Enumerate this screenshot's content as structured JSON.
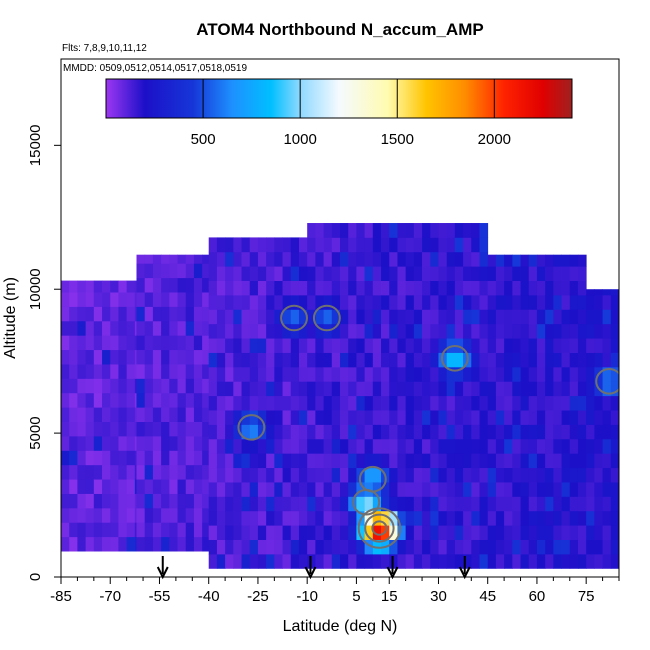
{
  "chart_data": {
    "type": "heatmap",
    "title": "ATOM4 Northbound N_accum_AMP",
    "subtitle_flights": "Flts: 7,8,9,10,11,12",
    "subtitle_dates": "MMDD: 0509,0512,0514,0517,0518,0519",
    "xlabel": "Latitude (deg N)",
    "ylabel": "Altitude (m)",
    "xlim": [
      -85,
      85
    ],
    "ylim": [
      0,
      18000
    ],
    "x_ticks": [
      -85,
      -70,
      -55,
      -40,
      -25,
      -10,
      5,
      15,
      30,
      45,
      60,
      75
    ],
    "y_ticks": [
      0,
      5000,
      10000,
      15000
    ],
    "colorbar": {
      "range": [
        0,
        2400
      ],
      "ticks": [
        500,
        1000,
        1500,
        2000
      ],
      "stops": [
        {
          "value": 0,
          "color": "#9d37f2"
        },
        {
          "value": 200,
          "color": "#1c10c8"
        },
        {
          "value": 450,
          "color": "#1636d8"
        },
        {
          "value": 650,
          "color": "#1e90ff"
        },
        {
          "value": 850,
          "color": "#00bfff"
        },
        {
          "value": 1000,
          "color": "#8fd9ff"
        },
        {
          "value": 1200,
          "color": "#f5faff"
        },
        {
          "value": 1450,
          "color": "#fffbb0"
        },
        {
          "value": 1650,
          "color": "#ffc400"
        },
        {
          "value": 1850,
          "color": "#ff8c00"
        },
        {
          "value": 2050,
          "color": "#ff2200"
        },
        {
          "value": 2250,
          "color": "#e00000"
        },
        {
          "value": 2400,
          "color": "#a02020"
        }
      ]
    },
    "flight_lat_arrows": [
      -54,
      -9,
      16,
      38
    ],
    "coverage": [
      {
        "lat_min": -85,
        "lat_max": -62,
        "alt_min": 900,
        "alt_max": 10300
      },
      {
        "lat_min": -62,
        "lat_max": -40,
        "alt_min": 900,
        "alt_max": 11200
      },
      {
        "lat_min": -40,
        "lat_max": -10,
        "alt_min": 300,
        "alt_max": 11800
      },
      {
        "lat_min": -10,
        "lat_max": 45,
        "alt_min": 300,
        "alt_max": 12300
      },
      {
        "lat_min": 45,
        "lat_max": 75,
        "alt_min": 300,
        "alt_max": 11200
      },
      {
        "lat_min": 75,
        "lat_max": 85,
        "alt_min": 300,
        "alt_max": 10000
      }
    ],
    "hotspots": [
      {
        "lat": 12,
        "alt": 1700,
        "value": 2300
      },
      {
        "lat": 8,
        "alt": 2600,
        "value": 1000
      },
      {
        "lat": 10,
        "alt": 3400,
        "value": 750
      },
      {
        "lat": 35,
        "alt": 7600,
        "value": 850
      },
      {
        "lat": 82,
        "alt": 6800,
        "value": 650
      },
      {
        "lat": -27,
        "alt": 5200,
        "value": 650
      },
      {
        "lat": -4,
        "alt": 9000,
        "value": 550
      },
      {
        "lat": -14,
        "alt": 9000,
        "value": 550
      }
    ],
    "grid": false,
    "legend": "colorbar-top-inside"
  }
}
